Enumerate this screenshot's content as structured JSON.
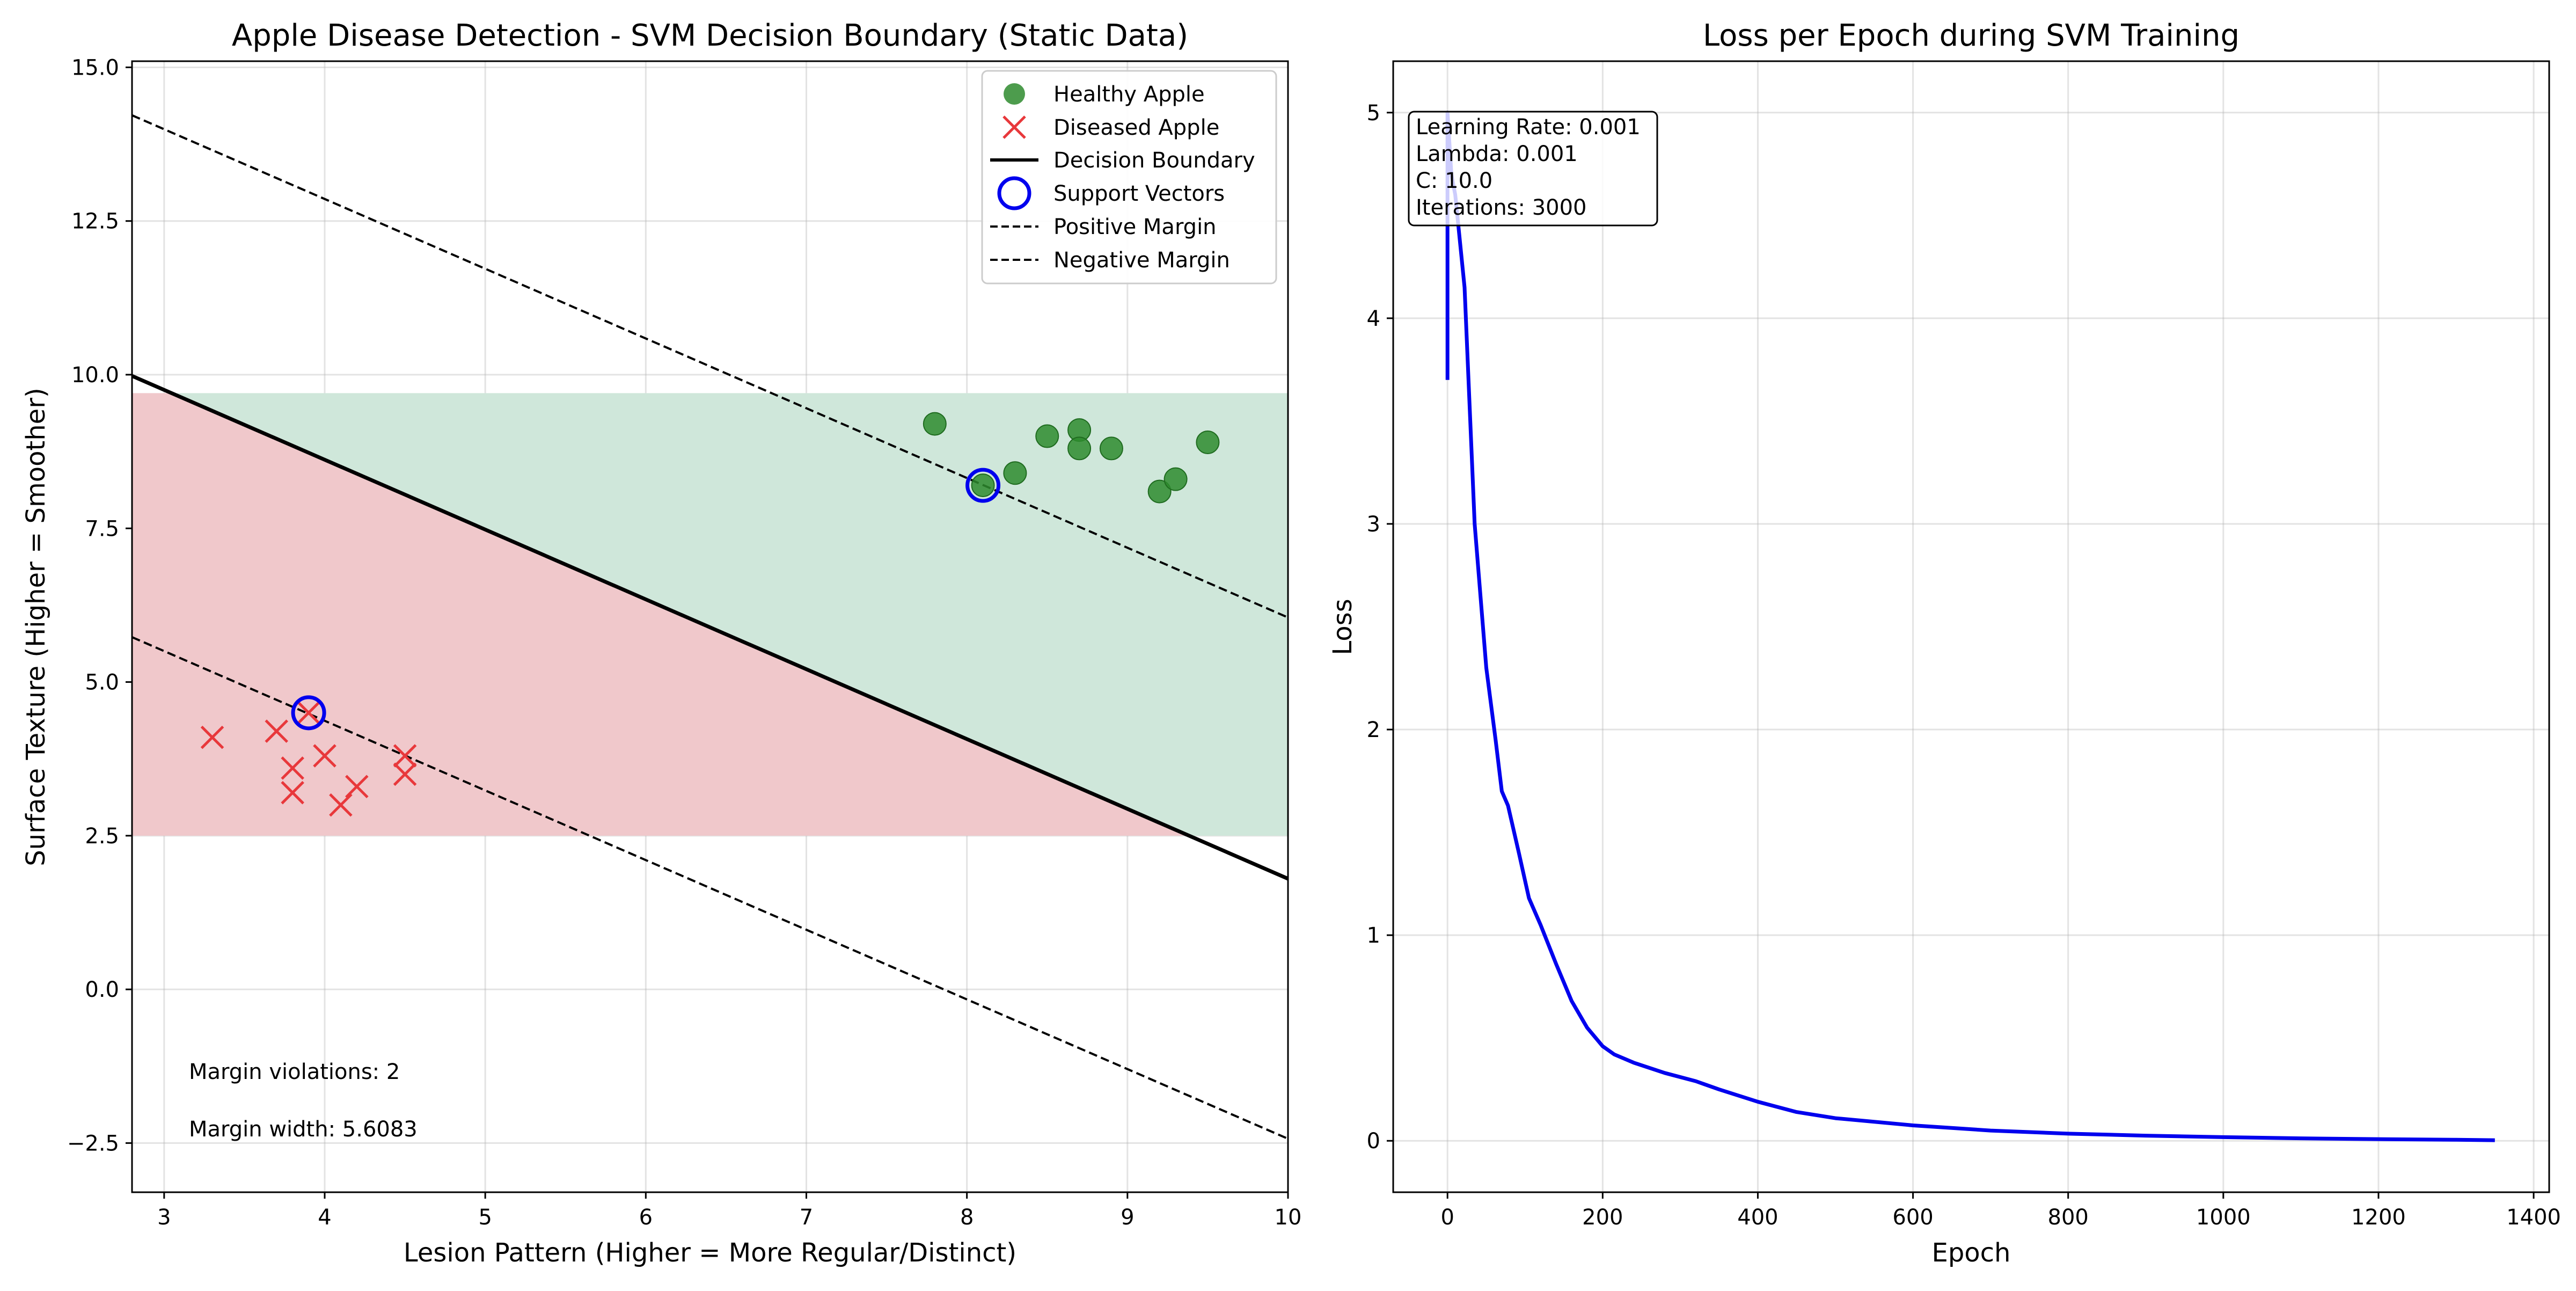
{
  "chart_data": [
    {
      "type": "scatter",
      "title": "Apple Disease Detection - SVM Decision Boundary (Static Data)",
      "xlabel": "Lesion Pattern (Higher = More Regular/Distinct)",
      "ylabel": "Surface Texture (Higher = Smoother)",
      "xlim": [
        2.8,
        10.0
      ],
      "ylim": [
        -3.3,
        15.1
      ],
      "xticks": [
        3,
        4,
        5,
        6,
        7,
        8,
        9,
        10
      ],
      "xtick_labels": [
        "3",
        "4",
        "5",
        "6",
        "7",
        "8",
        "9",
        "10"
      ],
      "yticks": [
        -2.5,
        0,
        2.5,
        5,
        7.5,
        10,
        12.5,
        15
      ],
      "ytick_labels": [
        "−2.5",
        "0.0",
        "2.5",
        "5.0",
        "7.5",
        "10.0",
        "12.5",
        "15.0"
      ],
      "grid": true,
      "legend_position": "top-right",
      "series": [
        {
          "name": "Healthy Apple",
          "kind": "scatter",
          "marker": "circle",
          "color": "#2e8b2e",
          "points": [
            [
              7.8,
              9.2
            ],
            [
              8.1,
              8.2
            ],
            [
              8.3,
              8.4
            ],
            [
              8.5,
              9.0
            ],
            [
              8.7,
              9.1
            ],
            [
              8.7,
              8.8
            ],
            [
              8.9,
              8.8
            ],
            [
              9.2,
              8.1
            ],
            [
              9.3,
              8.3
            ],
            [
              9.5,
              8.9
            ]
          ]
        },
        {
          "name": "Diseased Apple",
          "kind": "scatter",
          "marker": "x",
          "color": "#e8383b",
          "points": [
            [
              3.3,
              4.1
            ],
            [
              3.7,
              4.2
            ],
            [
              3.8,
              3.6
            ],
            [
              3.8,
              3.2
            ],
            [
              3.9,
              4.5
            ],
            [
              4.0,
              3.8
            ],
            [
              4.1,
              3.0
            ],
            [
              4.2,
              3.3
            ],
            [
              4.5,
              3.8
            ],
            [
              4.5,
              3.5
            ]
          ]
        },
        {
          "name": "Decision Boundary",
          "kind": "line",
          "style": "solid",
          "color": "#000000",
          "points": [
            [
              2.8,
              9.98
            ],
            [
              10.0,
              1.8
            ]
          ]
        },
        {
          "name": "Support Vectors",
          "kind": "scatter",
          "marker": "ring",
          "color": "#0000ee",
          "points": [
            [
              3.9,
              4.5
            ],
            [
              8.1,
              8.2
            ]
          ]
        },
        {
          "name": "Positive Margin",
          "kind": "line",
          "style": "dashed",
          "color": "#000000",
          "points": [
            [
              2.8,
              14.22
            ],
            [
              10.0,
              6.05
            ]
          ]
        },
        {
          "name": "Negative Margin",
          "kind": "line",
          "style": "dashed",
          "color": "#000000",
          "points": [
            [
              2.8,
              5.73
            ],
            [
              10.0,
              -2.43
            ]
          ]
        }
      ],
      "regions": [
        {
          "class": "diseased",
          "color": "#f0c8cb"
        },
        {
          "class": "healthy",
          "color": "#cfe7da"
        }
      ],
      "region_ylim": [
        2.5,
        9.7
      ],
      "annotations": [
        "Margin violations: 2",
        "Margin width: 5.6083"
      ]
    },
    {
      "type": "line",
      "title": "Loss per Epoch during SVM Training",
      "xlabel": "Epoch",
      "ylabel": "Loss",
      "xlim": [
        -70,
        1420
      ],
      "ylim": [
        -0.25,
        5.25
      ],
      "xticks": [
        0,
        200,
        400,
        600,
        800,
        1000,
        1200,
        1400
      ],
      "xtick_labels": [
        "0",
        "200",
        "400",
        "600",
        "800",
        "1000",
        "1200",
        "1400"
      ],
      "yticks": [
        0,
        1,
        2,
        3,
        4,
        5
      ],
      "ytick_labels": [
        "0",
        "1",
        "2",
        "3",
        "4",
        "5"
      ],
      "grid": true,
      "series": [
        {
          "kind": "line",
          "color": "#0000ee",
          "x": [
            0,
            0,
            5,
            10,
            22,
            35,
            50,
            62,
            70,
            78,
            92,
            105,
            120,
            140,
            160,
            180,
            200,
            215,
            240,
            280,
            320,
            350,
            400,
            450,
            500,
            600,
            700,
            800,
            900,
            1000,
            1100,
            1200,
            1300,
            1350
          ],
          "y": [
            3.7,
            5.0,
            4.7,
            4.6,
            4.15,
            3.0,
            2.3,
            1.95,
            1.7,
            1.63,
            1.4,
            1.18,
            1.05,
            0.86,
            0.68,
            0.55,
            0.46,
            0.42,
            0.38,
            0.33,
            0.29,
            0.25,
            0.19,
            0.14,
            0.11,
            0.075,
            0.05,
            0.035,
            0.025,
            0.018,
            0.012,
            0.008,
            0.005,
            0.003
          ]
        }
      ],
      "infobox": [
        "Learning Rate: 0.001",
        "Lambda: 0.001",
        "C: 10.0",
        "Iterations: 3000"
      ]
    }
  ]
}
